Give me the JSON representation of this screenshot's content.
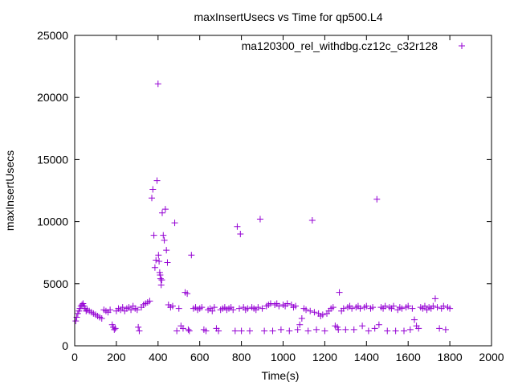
{
  "chart_data": {
    "type": "scatter",
    "title": "maxInsertUsecs vs Time for qp500.L4",
    "xlabel": "Time(s)",
    "ylabel": "maxInsertUsecs",
    "xlim": [
      0,
      2000
    ],
    "ylim": [
      0,
      25000
    ],
    "xticks": [
      0,
      200,
      400,
      600,
      800,
      1000,
      1200,
      1400,
      1600,
      1800,
      2000
    ],
    "yticks": [
      0,
      5000,
      10000,
      15000,
      20000,
      25000
    ],
    "grid": false,
    "legend_position": "top-right",
    "marker": "plus",
    "series": [
      {
        "name": "ma120300_rel_withdbg.cz12c_c32r128",
        "color": "#9400d3",
        "points": [
          [
            5,
            2000
          ],
          [
            10,
            2300
          ],
          [
            15,
            2600
          ],
          [
            20,
            2800
          ],
          [
            25,
            3000
          ],
          [
            30,
            3200
          ],
          [
            35,
            3300
          ],
          [
            40,
            3400
          ],
          [
            45,
            3200
          ],
          [
            50,
            3000
          ],
          [
            55,
            2800
          ],
          [
            60,
            2900
          ],
          [
            70,
            2800
          ],
          [
            80,
            2700
          ],
          [
            90,
            2600
          ],
          [
            100,
            2500
          ],
          [
            110,
            2400
          ],
          [
            120,
            2300
          ],
          [
            130,
            2200
          ],
          [
            140,
            2900
          ],
          [
            150,
            2800
          ],
          [
            160,
            2700
          ],
          [
            170,
            2900
          ],
          [
            180,
            1700
          ],
          [
            185,
            1500
          ],
          [
            190,
            1300
          ],
          [
            195,
            1400
          ],
          [
            200,
            2800
          ],
          [
            210,
            3000
          ],
          [
            220,
            2900
          ],
          [
            230,
            3100
          ],
          [
            240,
            2800
          ],
          [
            250,
            3000
          ],
          [
            260,
            3100
          ],
          [
            270,
            2900
          ],
          [
            280,
            3200
          ],
          [
            290,
            3000
          ],
          [
            300,
            2900
          ],
          [
            305,
            1500
          ],
          [
            310,
            1200
          ],
          [
            320,
            3100
          ],
          [
            330,
            3300
          ],
          [
            340,
            3400
          ],
          [
            350,
            3500
          ],
          [
            360,
            3600
          ],
          [
            370,
            11900
          ],
          [
            375,
            12600
          ],
          [
            380,
            8900
          ],
          [
            385,
            6300
          ],
          [
            390,
            6900
          ],
          [
            395,
            13300
          ],
          [
            400,
            21100
          ],
          [
            402,
            7300
          ],
          [
            405,
            6800
          ],
          [
            408,
            5900
          ],
          [
            410,
            5700
          ],
          [
            412,
            5400
          ],
          [
            415,
            4900
          ],
          [
            418,
            5300
          ],
          [
            420,
            10700
          ],
          [
            425,
            8900
          ],
          [
            430,
            8500
          ],
          [
            435,
            11000
          ],
          [
            440,
            7700
          ],
          [
            445,
            6700
          ],
          [
            450,
            3300
          ],
          [
            460,
            3100
          ],
          [
            470,
            3200
          ],
          [
            480,
            9900
          ],
          [
            490,
            1200
          ],
          [
            500,
            3000
          ],
          [
            510,
            1600
          ],
          [
            520,
            1400
          ],
          [
            530,
            4300
          ],
          [
            540,
            4200
          ],
          [
            545,
            1300
          ],
          [
            550,
            1200
          ],
          [
            560,
            7300
          ],
          [
            570,
            3000
          ],
          [
            580,
            3100
          ],
          [
            590,
            2900
          ],
          [
            600,
            3000
          ],
          [
            610,
            3100
          ],
          [
            620,
            1300
          ],
          [
            630,
            1200
          ],
          [
            640,
            2900
          ],
          [
            650,
            3000
          ],
          [
            660,
            2800
          ],
          [
            670,
            3100
          ],
          [
            680,
            1400
          ],
          [
            690,
            1200
          ],
          [
            700,
            2900
          ],
          [
            710,
            3000
          ],
          [
            720,
            3100
          ],
          [
            730,
            2900
          ],
          [
            740,
            3000
          ],
          [
            750,
            3100
          ],
          [
            760,
            2900
          ],
          [
            770,
            1200
          ],
          [
            780,
            9600
          ],
          [
            790,
            3000
          ],
          [
            795,
            9000
          ],
          [
            800,
            1200
          ],
          [
            810,
            3100
          ],
          [
            820,
            2900
          ],
          [
            830,
            3000
          ],
          [
            840,
            1200
          ],
          [
            850,
            3100
          ],
          [
            860,
            3000
          ],
          [
            870,
            2900
          ],
          [
            880,
            3100
          ],
          [
            890,
            10200
          ],
          [
            900,
            3000
          ],
          [
            910,
            1200
          ],
          [
            920,
            3200
          ],
          [
            930,
            3300
          ],
          [
            940,
            3400
          ],
          [
            950,
            1200
          ],
          [
            960,
            3300
          ],
          [
            970,
            3400
          ],
          [
            980,
            3200
          ],
          [
            990,
            1300
          ],
          [
            1000,
            3300
          ],
          [
            1010,
            3200
          ],
          [
            1020,
            3400
          ],
          [
            1030,
            1200
          ],
          [
            1040,
            3300
          ],
          [
            1050,
            3100
          ],
          [
            1060,
            3200
          ],
          [
            1070,
            1300
          ],
          [
            1080,
            1700
          ],
          [
            1090,
            2200
          ],
          [
            1100,
            3000
          ],
          [
            1110,
            2900
          ],
          [
            1120,
            1200
          ],
          [
            1130,
            2800
          ],
          [
            1140,
            10100
          ],
          [
            1150,
            2700
          ],
          [
            1160,
            1300
          ],
          [
            1170,
            2600
          ],
          [
            1180,
            2400
          ],
          [
            1190,
            2500
          ],
          [
            1200,
            1200
          ],
          [
            1210,
            2600
          ],
          [
            1220,
            2800
          ],
          [
            1230,
            3000
          ],
          [
            1240,
            3100
          ],
          [
            1250,
            1600
          ],
          [
            1260,
            1500
          ],
          [
            1265,
            1300
          ],
          [
            1270,
            4300
          ],
          [
            1280,
            2800
          ],
          [
            1290,
            3000
          ],
          [
            1300,
            1300
          ],
          [
            1310,
            3100
          ],
          [
            1320,
            3200
          ],
          [
            1330,
            3000
          ],
          [
            1340,
            1300
          ],
          [
            1350,
            3100
          ],
          [
            1360,
            3200
          ],
          [
            1370,
            3000
          ],
          [
            1380,
            1600
          ],
          [
            1390,
            3100
          ],
          [
            1400,
            3200
          ],
          [
            1410,
            1200
          ],
          [
            1420,
            3000
          ],
          [
            1430,
            3100
          ],
          [
            1440,
            1400
          ],
          [
            1450,
            11800
          ],
          [
            1460,
            1700
          ],
          [
            1470,
            3100
          ],
          [
            1480,
            3000
          ],
          [
            1490,
            3200
          ],
          [
            1500,
            1200
          ],
          [
            1510,
            3100
          ],
          [
            1520,
            3000
          ],
          [
            1530,
            3200
          ],
          [
            1540,
            1200
          ],
          [
            1550,
            2900
          ],
          [
            1560,
            3100
          ],
          [
            1570,
            3000
          ],
          [
            1580,
            1200
          ],
          [
            1590,
            3100
          ],
          [
            1600,
            3200
          ],
          [
            1610,
            1300
          ],
          [
            1620,
            3000
          ],
          [
            1630,
            2100
          ],
          [
            1640,
            1600
          ],
          [
            1650,
            1400
          ],
          [
            1660,
            3100
          ],
          [
            1670,
            3000
          ],
          [
            1680,
            3200
          ],
          [
            1690,
            2900
          ],
          [
            1700,
            3100
          ],
          [
            1710,
            3000
          ],
          [
            1720,
            3200
          ],
          [
            1730,
            3800
          ],
          [
            1740,
            3100
          ],
          [
            1750,
            1400
          ],
          [
            1760,
            3000
          ],
          [
            1770,
            3200
          ],
          [
            1780,
            1300
          ],
          [
            1790,
            3100
          ],
          [
            1800,
            3000
          ]
        ]
      }
    ]
  }
}
